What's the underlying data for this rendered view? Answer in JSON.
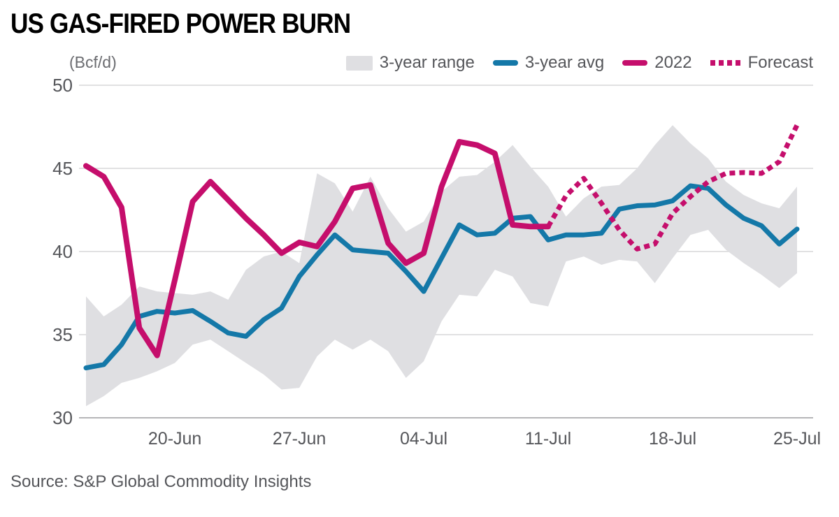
{
  "header": {
    "title": "US GAS-FIRED POWER BURN"
  },
  "axis": {
    "unit_label": "(Bcf/d)",
    "y_tick_labels": [
      "50",
      "45",
      "40",
      "35",
      "30"
    ],
    "x_tick_labels": [
      "20-Jun",
      "27-Jun",
      "04-Jul",
      "11-Jul",
      "18-Jul",
      "25-Jul"
    ]
  },
  "legend": {
    "items": [
      {
        "label": "3-year range",
        "swatch": "gray-band"
      },
      {
        "label": "3-year avg",
        "swatch": "blue-line"
      },
      {
        "label": "2022",
        "swatch": "pink-line"
      },
      {
        "label": "Forecast",
        "swatch": "pink-dotted"
      }
    ]
  },
  "source": {
    "text": "Source: S&P Global Commodity Insights"
  },
  "colors": {
    "band": "#dfdfe2",
    "avg_blue": "#1478a8",
    "pink_2022": "#c50e6c",
    "grid": "#d7d7d9",
    "axis_line": "#b5b5b8",
    "text_gray": "#55565a"
  },
  "chart_data": {
    "type": "line",
    "title": "US GAS-FIRED POWER BURN",
    "ylabel": "(Bcf/d)",
    "ylim": [
      30,
      50
    ],
    "y_ticks": [
      30,
      35,
      40,
      45,
      50
    ],
    "grid": "horizontal",
    "legend_position": "top-right",
    "x_dates": [
      "15-Jun",
      "16-Jun",
      "17-Jun",
      "18-Jun",
      "19-Jun",
      "20-Jun",
      "21-Jun",
      "22-Jun",
      "23-Jun",
      "24-Jun",
      "25-Jun",
      "26-Jun",
      "27-Jun",
      "28-Jun",
      "29-Jun",
      "30-Jun",
      "01-Jul",
      "02-Jul",
      "03-Jul",
      "04-Jul",
      "05-Jul",
      "06-Jul",
      "07-Jul",
      "08-Jul",
      "09-Jul",
      "10-Jul",
      "11-Jul",
      "12-Jul",
      "13-Jul",
      "14-Jul",
      "15-Jul",
      "16-Jul",
      "17-Jul",
      "18-Jul",
      "19-Jul",
      "20-Jul",
      "21-Jul",
      "22-Jul",
      "23-Jul",
      "24-Jul",
      "25-Jul"
    ],
    "x_shown_ticks": [
      {
        "label": "20-Jun",
        "day": 5
      },
      {
        "label": "27-Jun",
        "day": 12
      },
      {
        "label": "04-Jul",
        "day": 19
      },
      {
        "label": "11-Jul",
        "day": 26
      },
      {
        "label": "18-Jul",
        "day": 33
      },
      {
        "label": "25-Jul",
        "day": 40
      }
    ],
    "series": [
      {
        "name": "3-year range",
        "type": "band",
        "start_day": 0,
        "upper": [
          37.3,
          36.1,
          36.8,
          37.9,
          37.6,
          37.5,
          37.4,
          37.6,
          37.1,
          38.9,
          39.7,
          40.0,
          39.3,
          44.7,
          44.1,
          42.4,
          44.5,
          42.6,
          41.2,
          41.8,
          43.6,
          44.5,
          44.6,
          45.4,
          46.4,
          45.1,
          43.9,
          42.1,
          43.2,
          43.9,
          44.0,
          45.0,
          46.4,
          47.6,
          46.5,
          45.6,
          44.2,
          43.4,
          42.9,
          42.6,
          43.9
        ],
        "lower": [
          30.7,
          31.3,
          32.1,
          32.4,
          32.8,
          33.3,
          34.4,
          34.7,
          34.0,
          33.3,
          32.6,
          31.7,
          31.8,
          33.7,
          34.7,
          34.1,
          34.7,
          34.0,
          32.4,
          33.4,
          35.8,
          37.4,
          37.3,
          38.9,
          38.5,
          36.9,
          36.7,
          39.4,
          39.7,
          39.2,
          39.5,
          39.4,
          38.1,
          39.6,
          41.0,
          41.3,
          40.1,
          39.3,
          38.6,
          37.8,
          38.7
        ]
      },
      {
        "name": "3-year avg",
        "type": "line",
        "start_day": 0,
        "values": [
          33.0,
          33.2,
          34.4,
          36.1,
          36.4,
          36.3,
          36.45,
          35.8,
          35.1,
          34.9,
          35.9,
          36.6,
          38.5,
          39.8,
          41.0,
          40.1,
          40.0,
          39.9,
          38.8,
          37.6,
          39.6,
          41.6,
          41.0,
          41.1,
          42.0,
          42.1,
          40.7,
          41.0,
          41.0,
          41.1,
          42.55,
          42.75,
          42.8,
          43.05,
          43.95,
          43.8,
          42.8,
          42.0,
          41.55,
          40.45,
          41.35
        ]
      },
      {
        "name": "2022",
        "type": "line",
        "start_day": 0,
        "values": [
          45.15,
          44.5,
          42.65,
          35.4,
          33.75,
          38.3,
          43.0,
          44.2,
          43.1,
          42.0,
          41.0,
          39.9,
          40.55,
          40.3,
          41.8,
          43.8,
          44.0,
          40.5,
          39.3,
          39.9,
          43.9,
          46.6,
          46.4,
          45.9,
          41.6,
          41.5,
          41.5
        ]
      },
      {
        "name": "Forecast",
        "type": "dotted-line",
        "start_day": 26,
        "values": [
          41.5,
          43.35,
          44.4,
          42.9,
          41.3,
          40.15,
          40.45,
          42.3,
          43.3,
          44.2,
          44.7,
          44.75,
          44.7,
          45.4,
          47.6
        ]
      }
    ]
  }
}
